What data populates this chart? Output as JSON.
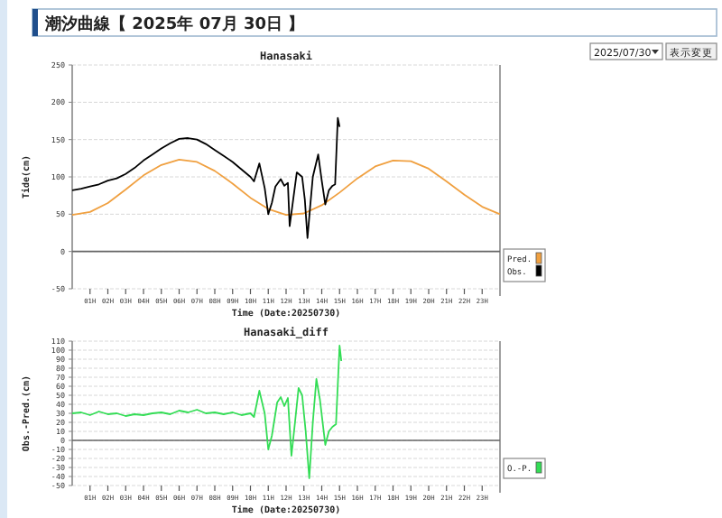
{
  "chart_data": [
    {
      "type": "line",
      "title": "Hanasaki",
      "xlabel": "Time (Date:20250730)",
      "ylabel": "Tide(cm)",
      "annotations": [
        "潮汐曲線【 2025年 07月 30日 】",
        "2025/07/30",
        "表示変更"
      ],
      "xlim": [
        0,
        24
      ],
      "ylim": [
        -50,
        250
      ],
      "yticks": [
        -50,
        0,
        50,
        100,
        150,
        200,
        250
      ],
      "xticks": [
        {
          "value": 1,
          "label": "01H"
        },
        {
          "value": 2,
          "label": "02H"
        },
        {
          "value": 3,
          "label": "03H"
        },
        {
          "value": 4,
          "label": "04H"
        },
        {
          "value": 5,
          "label": "05H"
        },
        {
          "value": 6,
          "label": "06H"
        },
        {
          "value": 7,
          "label": "07H"
        },
        {
          "value": 8,
          "label": "08H"
        },
        {
          "value": 9,
          "label": "09H"
        },
        {
          "value": 10,
          "label": "10H"
        },
        {
          "value": 11,
          "label": "11H"
        },
        {
          "value": 12,
          "label": "12H"
        },
        {
          "value": 13,
          "label": "13H"
        },
        {
          "value": 14,
          "label": "14H"
        },
        {
          "value": 15,
          "label": "15H"
        },
        {
          "value": 16,
          "label": "16H"
        },
        {
          "value": 17,
          "label": "17H"
        },
        {
          "value": 18,
          "label": "18H"
        },
        {
          "value": 19,
          "label": "19H"
        },
        {
          "value": 20,
          "label": "20H"
        },
        {
          "value": 21,
          "label": "21H"
        },
        {
          "value": 22,
          "label": "22H"
        },
        {
          "value": 23,
          "label": "23H"
        }
      ],
      "grid": "y",
      "legend": "right",
      "ref_lines": [
        {
          "axis": "y",
          "value": 0,
          "color": "#666666"
        }
      ],
      "series": [
        {
          "name": "Pred.",
          "color": "#f0a040",
          "x": [
            0,
            1,
            2,
            3,
            4,
            5,
            6,
            7,
            8,
            9,
            10,
            11,
            12,
            13,
            14,
            15,
            16,
            17,
            18,
            19,
            20,
            21,
            22,
            23,
            24
          ],
          "values": [
            49,
            53,
            65,
            83,
            102,
            116,
            123,
            120,
            108,
            91,
            72,
            57,
            49,
            51,
            62,
            79,
            98,
            114,
            122,
            121,
            111,
            94,
            76,
            60,
            50
          ]
        },
        {
          "name": "Obs.",
          "color": "#000000",
          "x": [
            0,
            0.5,
            1,
            1.5,
            2,
            2.5,
            3,
            3.5,
            4,
            4.5,
            5,
            5.5,
            6,
            6.5,
            7,
            7.5,
            8,
            8.5,
            9,
            9.5,
            10,
            10.2,
            10.5,
            10.8,
            11,
            11.2,
            11.4,
            11.7,
            11.9,
            12.1,
            12.2,
            12.4,
            12.6,
            12.9,
            13.05,
            13.2,
            13.35,
            13.5,
            13.8,
            14,
            14.2,
            14.4,
            14.6,
            14.75,
            14.9,
            15
          ],
          "values": [
            82,
            84,
            87,
            90,
            95,
            98,
            104,
            112,
            122,
            130,
            138,
            145,
            151,
            152,
            150,
            144,
            136,
            128,
            120,
            110,
            100,
            94,
            118,
            85,
            50,
            65,
            87,
            97,
            88,
            92,
            34,
            70,
            106,
            100,
            70,
            18,
            60,
            100,
            130,
            95,
            63,
            82,
            88,
            90,
            179,
            167
          ]
        }
      ]
    },
    {
      "type": "line",
      "title": "Hanasaki_diff",
      "xlabel": "Time (Date:20250730)",
      "ylabel": "Obs.-Pred.(cm)",
      "xlim": [
        0,
        24
      ],
      "ylim": [
        -50,
        110
      ],
      "yticks": [
        -50,
        -40,
        -30,
        -20,
        -10,
        0,
        10,
        20,
        30,
        40,
        50,
        60,
        70,
        80,
        90,
        100,
        110
      ],
      "xticks": [
        {
          "value": 1,
          "label": "01H"
        },
        {
          "value": 2,
          "label": "02H"
        },
        {
          "value": 3,
          "label": "03H"
        },
        {
          "value": 4,
          "label": "04H"
        },
        {
          "value": 5,
          "label": "05H"
        },
        {
          "value": 6,
          "label": "06H"
        },
        {
          "value": 7,
          "label": "07H"
        },
        {
          "value": 8,
          "label": "08H"
        },
        {
          "value": 9,
          "label": "09H"
        },
        {
          "value": 10,
          "label": "10H"
        },
        {
          "value": 11,
          "label": "11H"
        },
        {
          "value": 12,
          "label": "12H"
        },
        {
          "value": 13,
          "label": "13H"
        },
        {
          "value": 14,
          "label": "14H"
        },
        {
          "value": 15,
          "label": "15H"
        },
        {
          "value": 16,
          "label": "16H"
        },
        {
          "value": 17,
          "label": "17H"
        },
        {
          "value": 18,
          "label": "18H"
        },
        {
          "value": 19,
          "label": "19H"
        },
        {
          "value": 20,
          "label": "20H"
        },
        {
          "value": 21,
          "label": "21H"
        },
        {
          "value": 22,
          "label": "22H"
        },
        {
          "value": 23,
          "label": "23H"
        }
      ],
      "grid": "y",
      "legend": "right",
      "ref_lines": [
        {
          "axis": "y",
          "value": 0,
          "color": "#666666"
        }
      ],
      "series": [
        {
          "name": "O.-P.",
          "color": "#33dd55",
          "x": [
            0,
            0.5,
            1,
            1.5,
            2,
            2.5,
            3,
            3.5,
            4,
            4.5,
            5,
            5.5,
            6,
            6.5,
            7,
            7.5,
            8,
            8.5,
            9,
            9.5,
            10,
            10.2,
            10.5,
            10.8,
            11,
            11.2,
            11.5,
            11.7,
            11.9,
            12.1,
            12.3,
            12.5,
            12.7,
            12.9,
            13.1,
            13.3,
            13.5,
            13.7,
            13.9,
            14.2,
            14.4,
            14.6,
            14.8,
            15,
            15.1
          ],
          "values": [
            30,
            31,
            28,
            32,
            29,
            30,
            27,
            29,
            28,
            30,
            31,
            29,
            33,
            31,
            34,
            30,
            31,
            29,
            31,
            28,
            30,
            26,
            55,
            30,
            -10,
            5,
            42,
            48,
            38,
            47,
            -17,
            20,
            58,
            50,
            10,
            -42,
            20,
            68,
            45,
            -5,
            10,
            15,
            18,
            105,
            88
          ]
        }
      ]
    }
  ]
}
